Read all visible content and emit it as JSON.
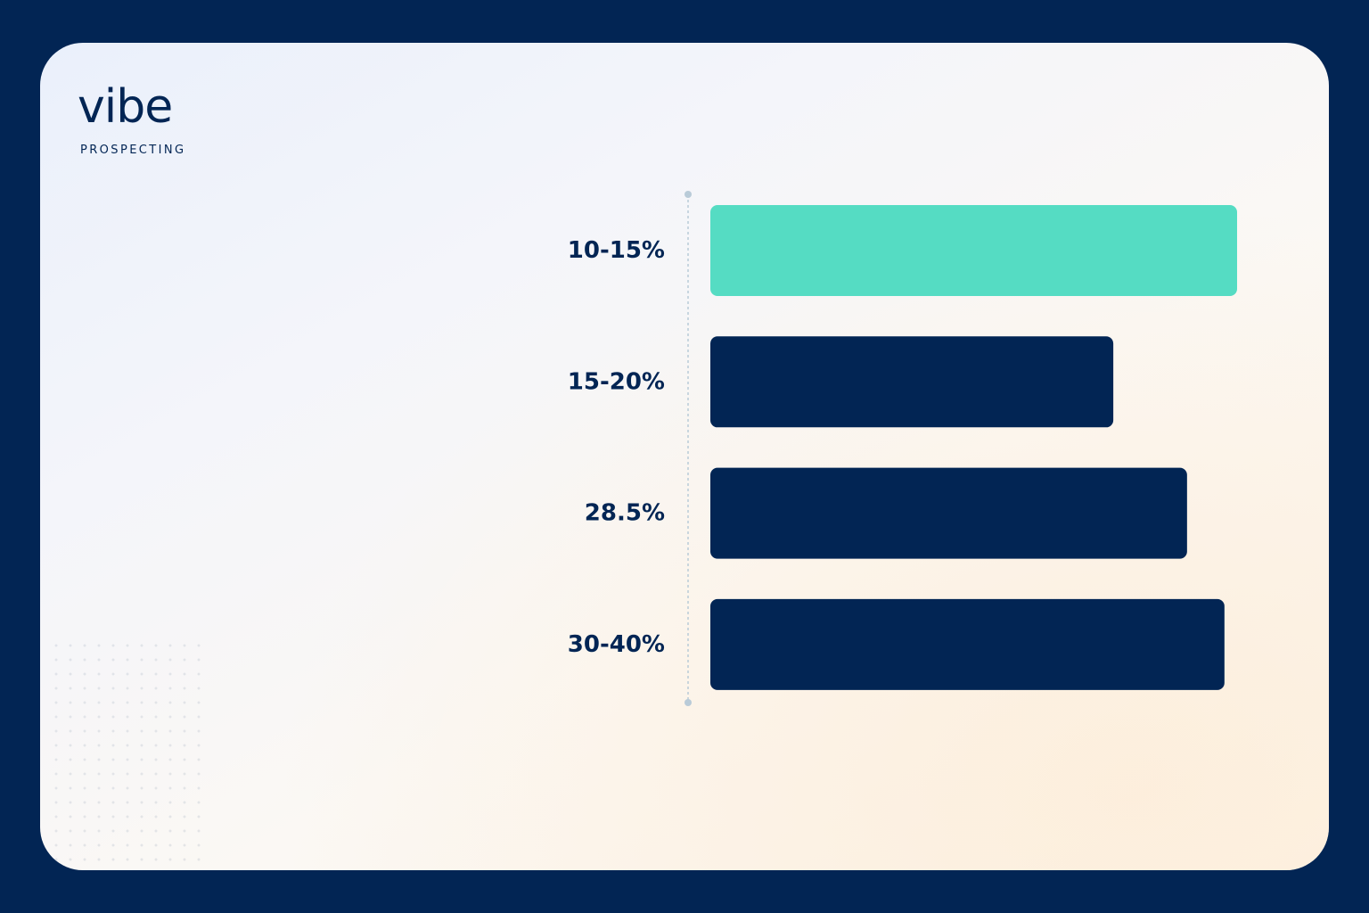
{
  "brand": {
    "name": "vibe",
    "tagline": "PROSPECTING"
  },
  "colors": {
    "background": "#022554",
    "highlight_bar": "#55dcc3",
    "bar": "#022554",
    "axis": "#b9cbd8"
  },
  "chart_data": {
    "type": "bar",
    "orientation": "horizontal",
    "categories": [
      "10-15%",
      "15-20%",
      "28.5%",
      "30-40%"
    ],
    "values": [
      100,
      76.5,
      90.5,
      97.6
    ],
    "highlighted_index": 0,
    "title": "",
    "xlabel": "",
    "ylabel": "",
    "xlim": [
      0,
      100
    ],
    "grid": false,
    "legend": "none"
  }
}
